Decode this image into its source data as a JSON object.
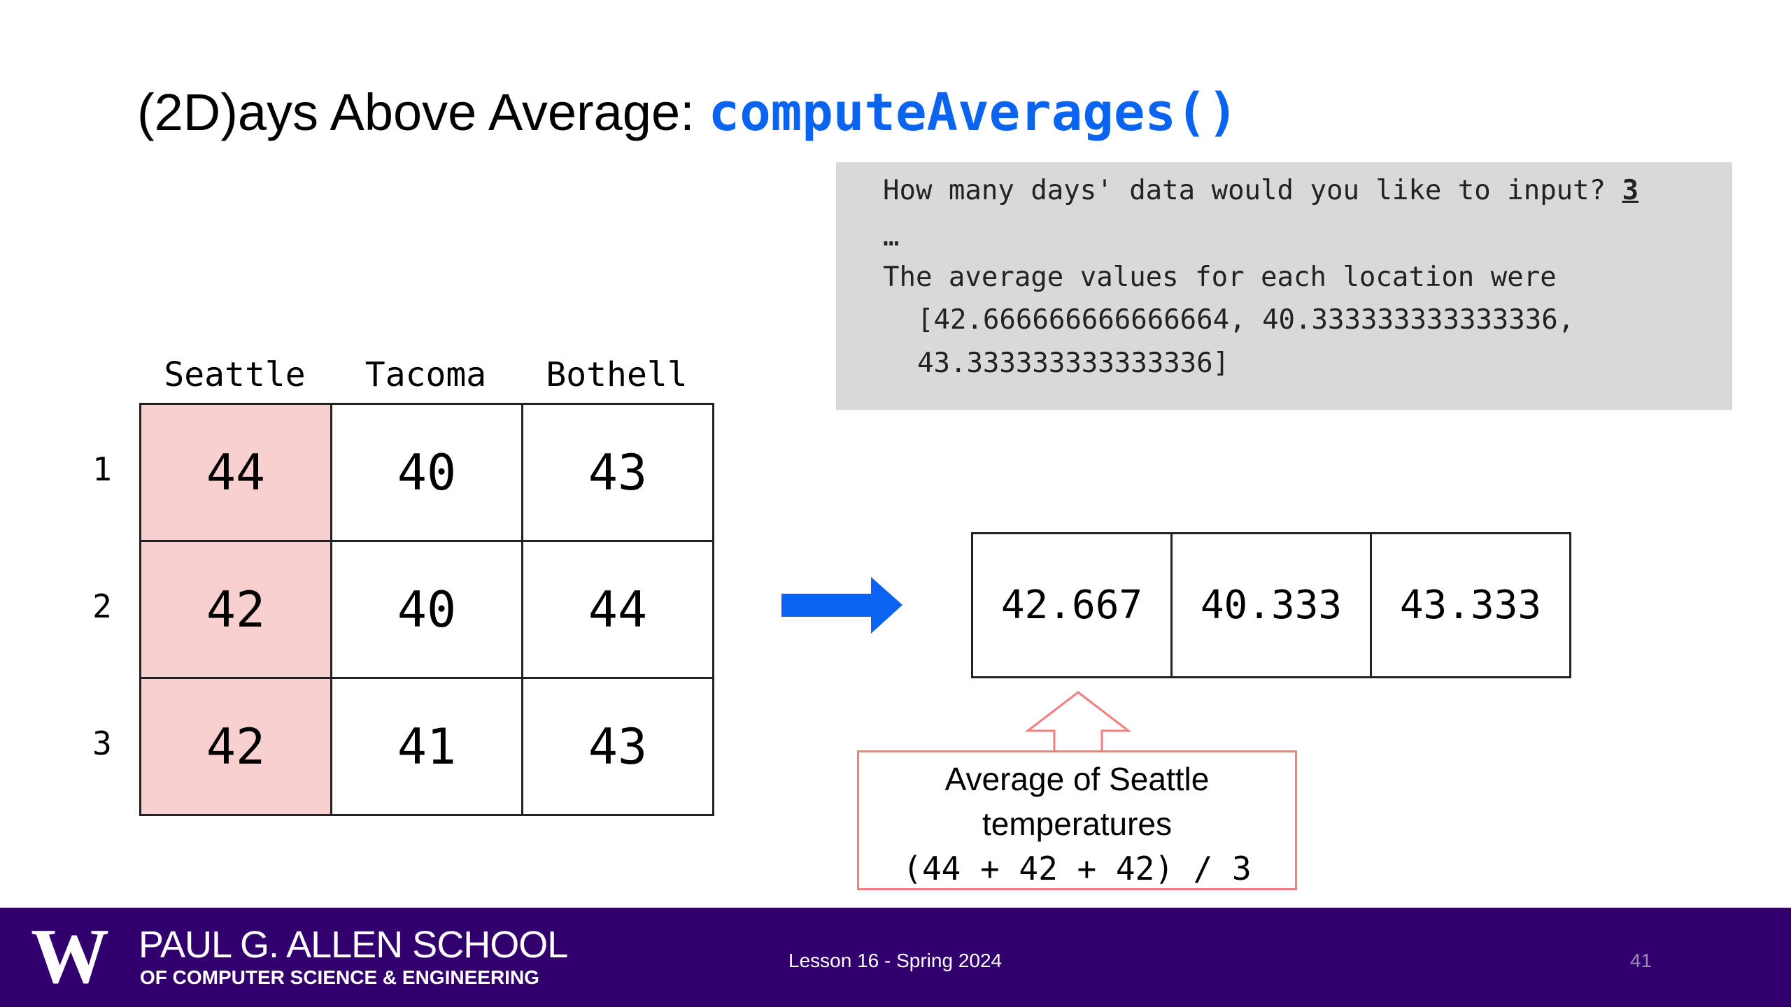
{
  "title": {
    "text": "(2D)ays Above Average:",
    "code": "computeAverages()"
  },
  "console": {
    "prompt": "How many days' data would you like to input?",
    "input": "3",
    "ellipsis": "…",
    "message": "The average values for each location were",
    "line1": "[42.666666666666664, 40.333333333333336,",
    "line2": "43.333333333333336]"
  },
  "table": {
    "columns": [
      "Seattle",
      "Tacoma",
      "Bothell"
    ],
    "row_labels": [
      "1",
      "2",
      "3"
    ],
    "rows": [
      [
        "44",
        "40",
        "43"
      ],
      [
        "42",
        "40",
        "44"
      ],
      [
        "42",
        "41",
        "43"
      ]
    ]
  },
  "averages": [
    "42.667",
    "40.333",
    "43.333"
  ],
  "callout": [
    "Average of Seattle",
    "temperatures",
    "(44 + 42 + 42) / 3"
  ],
  "footer": {
    "logo": "W",
    "school": "PAUL G. ALLEN SCHOOL",
    "department": "OF COMPUTER SCIENCE & ENGINEERING",
    "lesson": "Lesson 16 - Spring 2024",
    "page": "41"
  }
}
